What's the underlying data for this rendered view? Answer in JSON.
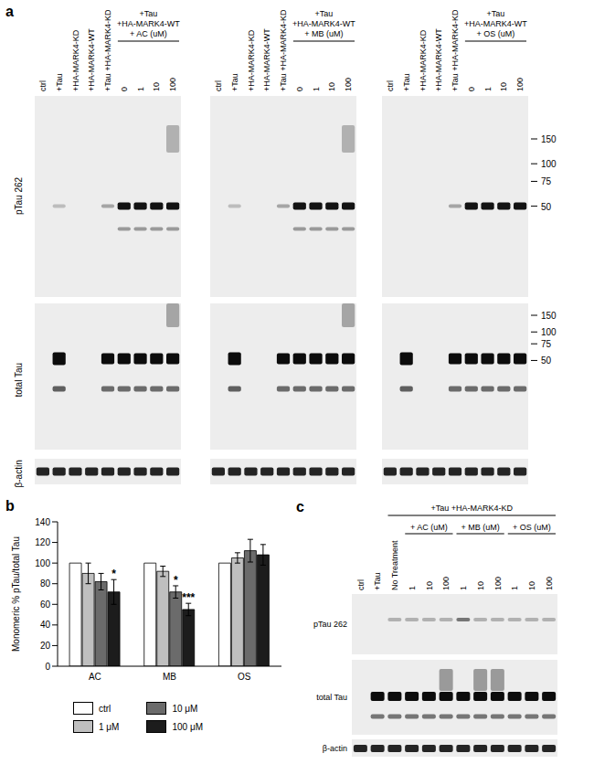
{
  "panel_labels": [
    "a",
    "b",
    "c"
  ],
  "panel_a": {
    "row_labels": [
      "pTau 262",
      "total Tau",
      "β-actin"
    ],
    "markers": [
      150,
      100,
      75,
      50
    ],
    "blots": [
      {
        "lane_labels": [
          "ctrl",
          "+Tau",
          "+HA-MARK4-KD",
          "+HA-MARK4-WT",
          "+Tau +HA-MARK4-KD",
          "0",
          "1",
          "10",
          "100"
        ],
        "group_label": [
          "+Tau",
          "+HA-MARK4-WT",
          "+ AC (uM)"
        ]
      },
      {
        "lane_labels": [
          "ctrl",
          "+Tau",
          "+HA-MARK4-KD",
          "+HA-MARK4-WT",
          "+Tau +HA-MARK4-KD",
          "0",
          "1",
          "10",
          "100"
        ],
        "group_label": [
          "+Tau",
          "+HA-MARK4-WT",
          "+ MB (uM)"
        ]
      },
      {
        "lane_labels": [
          "ctrl",
          "+Tau",
          "+HA-MARK4-KD",
          "+HA-MARK4-WT",
          "+Tau +HA-MARK4-KD",
          "0",
          "1",
          "10",
          "100"
        ],
        "group_label": [
          "+Tau",
          "+HA-MARK4-WT",
          "+ OS (uM)"
        ]
      }
    ]
  },
  "panel_c": {
    "row_labels": [
      "pTau 262",
      "total Tau",
      "β-actin"
    ],
    "group_label": "+Tau +HA-MARK4-KD",
    "lane_labels": [
      "ctrl",
      "+Tau",
      "No Treatment",
      "1",
      "10",
      "100",
      "1",
      "10",
      "100",
      "1",
      "10",
      "100"
    ],
    "treatment_labels": [
      "+ AC (uM)",
      "+ MB (uM)",
      "+ OS (uM)"
    ]
  },
  "chart_data": {
    "type": "bar",
    "categories": [
      "AC",
      "MB",
      "OS"
    ],
    "y_label": "Monomeric % pTau/total Tau",
    "ylim": [
      0,
      140
    ],
    "yticks": [
      0,
      20,
      40,
      60,
      80,
      100,
      120,
      140
    ],
    "series": [
      {
        "name": "ctrl",
        "color": "#ffffff",
        "values": [
          100,
          100,
          100
        ],
        "errors": [
          0,
          0,
          0
        ]
      },
      {
        "name": "1 μM",
        "color": "#bfbfbf",
        "values": [
          90,
          92,
          105
        ],
        "errors": [
          10,
          5,
          5
        ]
      },
      {
        "name": "10 μM",
        "color": "#6b6b6b",
        "values": [
          82,
          72,
          112
        ],
        "errors": [
          8,
          6,
          11
        ]
      },
      {
        "name": "100 μM",
        "color": "#1c1c1c",
        "values": [
          72,
          55,
          108
        ],
        "errors": [
          12,
          6,
          10
        ]
      }
    ],
    "annotations": [
      {
        "category": "AC",
        "series": "100 μM",
        "text": "*"
      },
      {
        "category": "MB",
        "series": "10 μM",
        "text": "*"
      },
      {
        "category": "MB",
        "series": "100 μM",
        "text": "***"
      }
    ],
    "legend": "bottom"
  }
}
